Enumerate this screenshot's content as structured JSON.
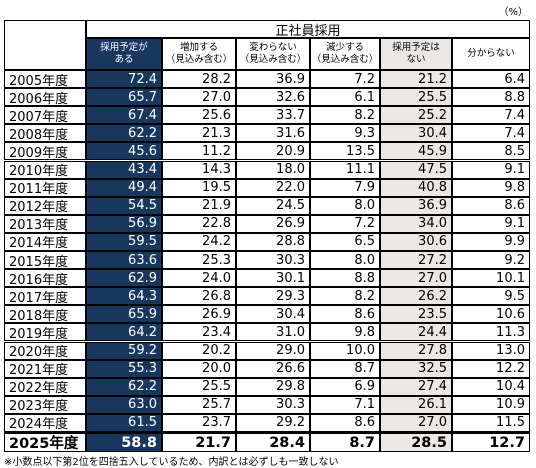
{
  "unit": "（%）",
  "header": {
    "group": "正社員採用",
    "columns": [
      [
        "採用予定が",
        "ある"
      ],
      [
        "増加する",
        "（見込み含む）"
      ],
      [
        "変わらない",
        "（見込み含む）"
      ],
      [
        "減少する",
        "（見込み含む）"
      ],
      [
        "採用予定は",
        "ない"
      ],
      [
        "分からない"
      ]
    ]
  },
  "table": {
    "rows": [
      [
        "2005年度",
        "72.4",
        "28.2",
        "36.9",
        "7.2",
        "21.2",
        "6.4"
      ],
      [
        "2006年度",
        "65.7",
        "27.0",
        "32.6",
        "6.1",
        "25.5",
        "8.8"
      ],
      [
        "2007年度",
        "67.4",
        "25.6",
        "33.7",
        "8.2",
        "25.2",
        "7.4"
      ],
      [
        "2008年度",
        "62.2",
        "21.3",
        "31.6",
        "9.3",
        "30.4",
        "7.4"
      ],
      [
        "2009年度",
        "45.6",
        "11.2",
        "20.9",
        "13.5",
        "45.9",
        "8.5"
      ],
      [
        "2010年度",
        "43.4",
        "14.3",
        "18.0",
        "11.1",
        "47.5",
        "9.1"
      ],
      [
        "2011年度",
        "49.4",
        "19.5",
        "22.0",
        "7.9",
        "40.8",
        "9.8"
      ],
      [
        "2012年度",
        "54.5",
        "21.9",
        "24.5",
        "8.0",
        "36.9",
        "8.6"
      ],
      [
        "2013年度",
        "56.9",
        "22.8",
        "26.9",
        "7.2",
        "34.0",
        "9.1"
      ],
      [
        "2014年度",
        "59.5",
        "24.2",
        "28.8",
        "6.5",
        "30.6",
        "9.9"
      ],
      [
        "2015年度",
        "63.6",
        "25.3",
        "30.3",
        "8.0",
        "27.2",
        "9.2"
      ],
      [
        "2016年度",
        "62.9",
        "24.0",
        "30.1",
        "8.8",
        "27.0",
        "10.1"
      ],
      [
        "2017年度",
        "64.3",
        "26.8",
        "29.3",
        "8.2",
        "26.2",
        "9.5"
      ],
      [
        "2018年度",
        "65.9",
        "26.9",
        "30.4",
        "8.6",
        "23.5",
        "10.6"
      ],
      [
        "2019年度",
        "64.2",
        "23.4",
        "31.0",
        "9.8",
        "24.4",
        "11.3"
      ],
      [
        "2020年度",
        "59.2",
        "20.2",
        "29.0",
        "10.0",
        "27.8",
        "13.0"
      ],
      [
        "2021年度",
        "55.3",
        "20.0",
        "26.6",
        "8.7",
        "32.5",
        "12.2"
      ],
      [
        "2022年度",
        "62.2",
        "25.5",
        "29.8",
        "6.9",
        "27.4",
        "10.4"
      ],
      [
        "2023年度",
        "63.0",
        "25.7",
        "30.3",
        "7.1",
        "26.1",
        "10.9"
      ],
      [
        "2024年度",
        "61.5",
        "23.7",
        "29.2",
        "8.6",
        "27.0",
        "11.5"
      ],
      [
        "2025年度",
        "58.8",
        "21.7",
        "28.4",
        "8.7",
        "28.5",
        "12.7"
      ]
    ]
  },
  "footnote": "※小数点以下第2位を四捨五入しているため、内訳とは必ずしも一致しない"
}
